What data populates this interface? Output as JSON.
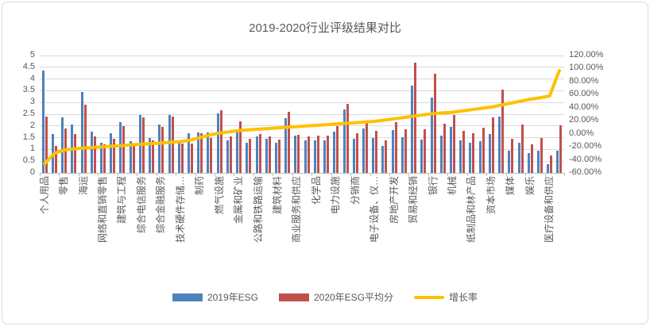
{
  "chart_data": {
    "type": "bar",
    "title": "2019-2020行业评级结果对比",
    "legend_position": "bottom",
    "grid": true,
    "categories": [
      "个人用品",
      "",
      "零售",
      "",
      "海运",
      "",
      "网络和直销零售",
      "",
      "建筑与工程",
      "",
      "综合电信服务",
      "",
      "综合金融服务",
      "",
      "技术硬件存储…",
      "",
      "制药",
      "",
      "燃气设施",
      "",
      "金属和矿业",
      "",
      "公路和铁路运输",
      "",
      "建筑材料",
      "",
      "商业服务和供应",
      "",
      "化学品",
      "",
      "电力设施",
      "",
      "分销商",
      "",
      "电子设备、仪…",
      "",
      "房地产开发",
      "",
      "贸易和经销",
      "",
      "银行",
      "",
      "机械",
      "",
      "纸制品和林产品",
      "",
      "资本市场",
      "",
      "媒体",
      "",
      "娱乐",
      "",
      "医疗设备和供应",
      ""
    ],
    "series": [
      {
        "name": "2019年ESG",
        "type": "bar",
        "color": "#4F81BD",
        "axis": "left",
        "values": [
          4.35,
          1.65,
          2.35,
          2.05,
          3.45,
          1.75,
          1.3,
          1.7,
          2.15,
          1.35,
          2.45,
          1.5,
          2.05,
          2.45,
          1.3,
          1.7,
          1.73,
          1.73,
          2.52,
          1.4,
          1.85,
          1.3,
          1.55,
          1.45,
          1.28,
          2.33,
          1.6,
          1.4,
          1.37,
          1.4,
          1.75,
          2.7,
          1.45,
          1.9,
          1.5,
          1.15,
          1.81,
          1.51,
          3.7,
          1.42,
          3.22,
          1.6,
          1.95,
          1.4,
          1.3,
          1.34,
          1.66,
          2.39,
          0.95,
          1.28,
          0.83,
          0.95,
          0.38,
          0.95
        ]
      },
      {
        "name": "2020年ESG平均分",
        "type": "bar",
        "color": "#C0504D",
        "axis": "left",
        "values": [
          2.4,
          1.15,
          1.9,
          1.65,
          2.9,
          1.55,
          1.2,
          1.45,
          2.0,
          1.25,
          2.35,
          1.4,
          1.95,
          2.4,
          1.25,
          1.26,
          1.7,
          1.49,
          2.67,
          1.54,
          2.18,
          1.45,
          1.65,
          1.55,
          1.42,
          2.6,
          1.62,
          1.55,
          1.6,
          1.6,
          2.0,
          2.95,
          1.7,
          2.2,
          1.8,
          1.37,
          2.15,
          1.87,
          4.68,
          1.85,
          4.21,
          2.1,
          2.45,
          1.8,
          1.7,
          1.94,
          2.35,
          3.54,
          1.45,
          2.07,
          1.23,
          1.48,
          0.74,
          2.02
        ]
      },
      {
        "name": "增长率",
        "type": "line",
        "color": "#FFC000",
        "axis": "right",
        "values_percent": [
          -46,
          -30,
          -25,
          -23,
          -22,
          -21,
          -20,
          -19,
          -18,
          -17,
          -16,
          -15,
          -14,
          -13,
          -12,
          -10,
          -6,
          -2,
          1,
          3,
          5,
          6,
          7,
          8,
          9,
          10,
          11,
          12,
          13,
          14,
          15,
          16,
          17,
          18,
          19,
          21,
          23,
          25,
          27,
          29,
          31,
          32,
          33,
          35,
          37,
          39,
          41,
          44,
          47,
          50,
          53,
          55,
          58,
          97
        ]
      }
    ],
    "left_axis": {
      "min": 0,
      "max": 5,
      "step": 0.5,
      "ticks": [
        "5",
        "4.5",
        "4",
        "3.5",
        "3",
        "2.5",
        "2",
        "1.5",
        "1",
        "0.5",
        "0"
      ]
    },
    "right_axis": {
      "min": -60,
      "max": 120,
      "step": 20,
      "ticks": [
        "120.00%",
        "100.00%",
        "80.00%",
        "60.00%",
        "40.00%",
        "20.00%",
        "0.00%",
        "-20.00%",
        "-40.00%",
        "-60.00%"
      ]
    },
    "colors": {
      "bar_2019": "#4F81BD",
      "bar_2020": "#C0504D",
      "growth_line": "#FFC000",
      "text": "#595959",
      "gridline": "#D9D9D9"
    }
  }
}
